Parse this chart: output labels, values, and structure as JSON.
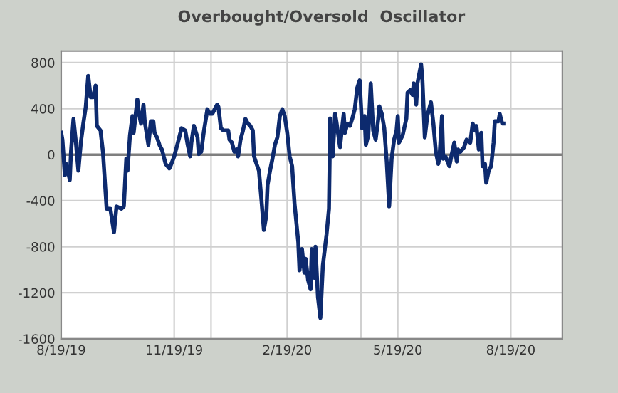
{
  "chart_data": {
    "type": "line",
    "title": "Overbought/Oversold  Oscillator",
    "x": [
      "2019-08-19",
      "2019-08-20",
      "2019-08-22",
      "2019-08-23",
      "2019-08-24",
      "2019-08-26",
      "2019-08-27",
      "2019-08-29",
      "2019-08-31",
      "2019-09-02",
      "2019-09-04",
      "2019-09-06",
      "2019-09-08",
      "2019-09-10",
      "2019-09-12",
      "2019-09-14",
      "2019-09-16",
      "2019-09-17",
      "2019-09-20",
      "2019-09-22",
      "2019-09-25",
      "2019-09-28",
      "2019-10-01",
      "2019-10-03",
      "2019-10-07",
      "2019-10-09",
      "2019-10-11",
      "2019-10-12",
      "2019-10-14",
      "2019-10-16",
      "2019-10-17",
      "2019-10-20",
      "2019-10-21",
      "2019-10-23",
      "2019-10-25",
      "2019-10-26",
      "2019-10-29",
      "2019-10-31",
      "2019-11-02",
      "2019-11-03",
      "2019-11-05",
      "2019-11-07",
      "2019-11-09",
      "2019-11-12",
      "2019-11-15",
      "2019-11-16",
      "2019-11-19",
      "2019-11-22",
      "2019-11-25",
      "2019-11-28",
      "2019-11-30",
      "2019-12-02",
      "2019-12-03",
      "2019-12-05",
      "2019-12-08",
      "2019-12-09",
      "2019-12-11",
      "2019-12-13",
      "2019-12-16",
      "2019-12-18",
      "2019-12-20",
      "2019-12-22",
      "2019-12-24",
      "2019-12-25",
      "2019-12-27",
      "2019-12-29",
      "2020-01-02",
      "2020-01-03",
      "2020-01-05",
      "2020-01-07",
      "2020-01-09",
      "2020-01-10",
      "2020-01-12",
      "2020-01-14",
      "2020-01-16",
      "2020-01-18",
      "2020-01-20",
      "2020-01-22",
      "2020-01-23",
      "2020-01-25",
      "2020-01-27",
      "2020-01-29",
      "2020-01-31",
      "2020-02-02",
      "2020-02-03",
      "2020-02-05",
      "2020-02-07",
      "2020-02-09",
      "2020-02-11",
      "2020-02-13",
      "2020-02-15",
      "2020-02-17",
      "2020-02-19",
      "2020-02-21",
      "2020-02-23",
      "2020-02-25",
      "2020-02-28",
      "2020-02-29",
      "2020-03-02",
      "2020-03-04",
      "2020-03-05",
      "2020-03-07",
      "2020-03-09",
      "2020-03-10",
      "2020-03-12",
      "2020-03-13",
      "2020-03-15",
      "2020-03-17",
      "2020-03-19",
      "2020-03-22",
      "2020-03-24",
      "2020-03-25",
      "2020-03-27",
      "2020-03-29",
      "2020-03-30",
      "2020-04-02",
      "2020-04-03",
      "2020-04-05",
      "2020-04-06",
      "2020-04-08",
      "2020-04-10",
      "2020-04-12",
      "2020-04-14",
      "2020-04-16",
      "2020-04-18",
      "2020-04-20",
      "2020-04-22",
      "2020-04-23",
      "2020-04-25",
      "2020-04-27",
      "2020-04-29",
      "2020-05-01",
      "2020-05-03",
      "2020-05-04",
      "2020-05-06",
      "2020-05-08",
      "2020-05-10",
      "2020-05-12",
      "2020-05-14",
      "2020-05-16",
      "2020-05-18",
      "2020-05-19",
      "2020-05-20",
      "2020-05-23",
      "2020-05-26",
      "2020-05-27",
      "2020-05-29",
      "2020-05-31",
      "2020-06-01",
      "2020-06-03",
      "2020-06-04",
      "2020-06-07",
      "2020-06-08",
      "2020-06-10",
      "2020-06-12",
      "2020-06-13",
      "2020-06-15",
      "2020-06-17",
      "2020-06-19",
      "2020-06-21",
      "2020-06-22",
      "2020-06-24",
      "2020-06-25",
      "2020-06-27",
      "2020-06-30",
      "2020-07-02",
      "2020-07-04",
      "2020-07-06",
      "2020-07-07",
      "2020-07-09",
      "2020-07-12",
      "2020-07-14",
      "2020-07-17",
      "2020-07-19",
      "2020-07-21",
      "2020-07-22",
      "2020-07-24",
      "2020-07-26",
      "2020-07-27",
      "2020-07-29",
      "2020-07-30",
      "2020-08-01",
      "2020-08-03",
      "2020-08-05",
      "2020-08-06",
      "2020-08-09",
      "2020-08-10",
      "2020-08-12",
      "2020-08-13"
    ],
    "series": [
      {
        "color": "#0d2a6e",
        "values": [
          190,
          130,
          -180,
          -80,
          -120,
          -220,
          25,
          310,
          105,
          -140,
          105,
          270,
          415,
          685,
          500,
          500,
          600,
          250,
          210,
          25,
          -470,
          -470,
          -675,
          -450,
          -470,
          -450,
          -35,
          -140,
          170,
          335,
          190,
          480,
          375,
          270,
          435,
          290,
          85,
          290,
          290,
          190,
          150,
          85,
          45,
          -80,
          -120,
          -100,
          -15,
          105,
          230,
          210,
          85,
          -15,
          105,
          250,
          150,
          5,
          25,
          190,
          395,
          355,
          355,
          395,
          435,
          415,
          230,
          210,
          210,
          130,
          105,
          25,
          45,
          -15,
          130,
          210,
          310,
          270,
          250,
          210,
          -15,
          -80,
          -140,
          -390,
          -655,
          -530,
          -265,
          -140,
          -35,
          85,
          150,
          335,
          395,
          335,
          190,
          -15,
          -100,
          -430,
          -760,
          -1005,
          -820,
          -1025,
          -905,
          -1090,
          -1170,
          -820,
          -1070,
          -800,
          -1235,
          -1420,
          -965,
          -695,
          -470,
          315,
          -15,
          355,
          290,
          65,
          170,
          355,
          190,
          270,
          250,
          315,
          395,
          580,
          645,
          230,
          335,
          85,
          170,
          620,
          210,
          130,
          300,
          420,
          355,
          230,
          -60,
          -450,
          -35,
          130,
          210,
          335,
          105,
          170,
          315,
          540,
          560,
          520,
          620,
          435,
          620,
          785,
          665,
          150,
          335,
          375,
          455,
          270,
          25,
          -80,
          -15,
          335,
          -35,
          -20,
          -100,
          5,
          105,
          -60,
          45,
          25,
          65,
          130,
          105,
          270,
          210,
          250,
          45,
          190,
          -100,
          -80,
          -245,
          -140,
          -100,
          105,
          290,
          290,
          355,
          270,
          270
        ]
      }
    ],
    "xlim": [
      "2019-08-19",
      "2020-09-30"
    ],
    "xticks": [
      {
        "value": "2019-08-19",
        "label": "8/19/19"
      },
      {
        "value": "2019-11-19",
        "label": "11/19/19"
      },
      {
        "value": "2019-12-19",
        "label": null
      },
      {
        "value": "2020-02-19",
        "label": "2/19/20"
      },
      {
        "value": "2020-04-19",
        "label": null
      },
      {
        "value": "2020-05-19",
        "label": "5/19/20"
      },
      {
        "value": "2020-08-19",
        "label": "8/19/20"
      }
    ],
    "ylim": [
      -1600,
      900
    ],
    "yticks": [
      -1600,
      -1200,
      -800,
      -400,
      0,
      400,
      800
    ],
    "ref_lines": [
      {
        "axis": "y",
        "value": 0,
        "color": "#7f7f7f"
      }
    ],
    "grid": true,
    "line_style": "solid"
  }
}
